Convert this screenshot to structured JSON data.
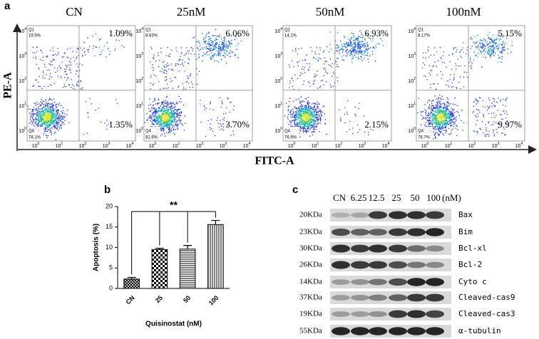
{
  "figure": {
    "panel_labels": [
      "a",
      "b",
      "c"
    ]
  },
  "flow": {
    "x_label": "FITC-A",
    "y_label": "PE-A",
    "tick_base": "10",
    "tick_exponents": [
      "0",
      "1",
      "2",
      "3",
      "4"
    ],
    "panels": [
      {
        "title": "CN",
        "q1": "Q1",
        "q1_pct": "19.5%",
        "q4": "Q4",
        "q4_pct": "78.1%",
        "upper_right": "1.09%",
        "lower_right": "1.35%"
      },
      {
        "title": "25nM",
        "q1": "Q1",
        "q1_pct": "8.63%",
        "q4": "Q4",
        "q4_pct": "81.6%",
        "upper_right": "6.06%",
        "lower_right": "3.70%"
      },
      {
        "title": "50nM",
        "q1": "Q1",
        "q1_pct": "14.1%",
        "q4": "Q4",
        "q4_pct": "76.9%",
        "upper_right": "6.93%",
        "lower_right": "2.15%"
      },
      {
        "title": "100nM",
        "q1": "Q1",
        "q1_pct": "8.17%",
        "q4": "Q4",
        "q4_pct": "76.7%",
        "upper_right": "5.15%",
        "lower_right": "9.97%"
      }
    ]
  },
  "chart_data": {
    "type": "bar",
    "x_label": "Quisinostat (nM)",
    "y_label": "Apoptosis (%)",
    "categories": [
      "CN",
      "25",
      "50",
      "100"
    ],
    "values": [
      2.3,
      9.5,
      9.6,
      15.6
    ],
    "errors": [
      0.4,
      0.3,
      0.9,
      1.0
    ],
    "ylim": [
      0,
      20
    ],
    "yticks": [
      0,
      5,
      10,
      15,
      20
    ],
    "annotation": "**",
    "color": "#000000"
  },
  "blot": {
    "header_lanes": [
      "CN",
      "6.25",
      "12.5",
      "25",
      "50",
      "100"
    ],
    "header_unit": "(nM)",
    "rows": [
      {
        "size": "20KDa",
        "protein": "Bax"
      },
      {
        "size": "23KDa",
        "protein": "Bim"
      },
      {
        "size": "30KDa",
        "protein": "Bcl-xl"
      },
      {
        "size": "26KDa",
        "protein": "Bcl-2"
      },
      {
        "size": "14KDa",
        "protein": "Cyto c"
      },
      {
        "size": "37KDa",
        "protein": "Cleaved-cas9"
      },
      {
        "size": "19KDa",
        "protein": "Cleaved-cas3"
      },
      {
        "size": "55KDa",
        "protein": "α-tubulin"
      }
    ]
  }
}
